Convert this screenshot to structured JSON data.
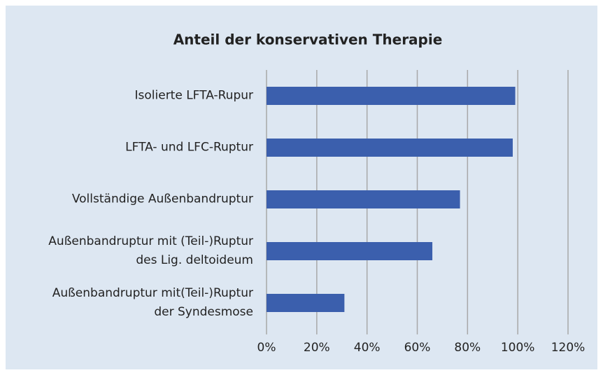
{
  "chart_data": {
    "type": "hbar",
    "title": "Anteil der konservativen Therapie",
    "categories": [
      "Isolierte LFTA-Rupur",
      "LFTA- und LFC-Ruptur",
      "Vollständige Außenbandruptur",
      "Außenbandruptur mit (Teil-)Ruptur\ndes Lig. deltoideum",
      "Außenbandruptur mit(Teil-)Ruptur\nder Syndesmose"
    ],
    "values": [
      99,
      98,
      77,
      66,
      31
    ],
    "color": "#3b5fad",
    "xlim": [
      0,
      120
    ],
    "xticks": [
      {
        "value": 0,
        "label": "0%"
      },
      {
        "value": 20,
        "label": "20%"
      },
      {
        "value": 40,
        "label": "40%"
      },
      {
        "value": 60,
        "label": "60%"
      },
      {
        "value": 80,
        "label": "80%"
      },
      {
        "value": 100,
        "label": "100%"
      },
      {
        "value": 120,
        "label": "120%"
      }
    ],
    "grid": true
  }
}
